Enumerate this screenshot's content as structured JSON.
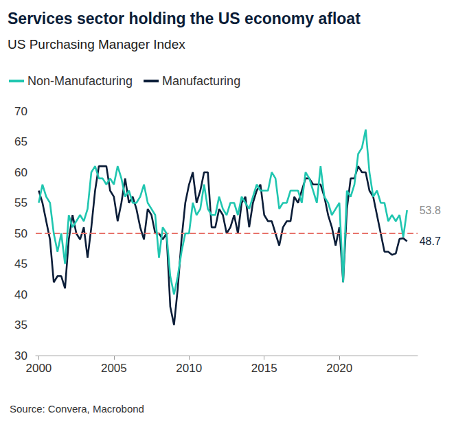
{
  "chart_data": {
    "type": "line",
    "title": "Services sector holding the US economy afloat",
    "subtitle": "US Purchasing Manager Index",
    "source": "Source: Convera, Macrobond",
    "x": [
      2000,
      2000.25,
      2000.5,
      2000.75,
      2001,
      2001.25,
      2001.5,
      2001.75,
      2002,
      2002.25,
      2002.5,
      2002.75,
      2003,
      2003.25,
      2003.5,
      2003.75,
      2004,
      2004.25,
      2004.5,
      2004.75,
      2005,
      2005.25,
      2005.5,
      2005.75,
      2006,
      2006.25,
      2006.5,
      2006.75,
      2007,
      2007.25,
      2007.5,
      2007.75,
      2008,
      2008.25,
      2008.5,
      2008.75,
      2009,
      2009.25,
      2009.5,
      2009.75,
      2010,
      2010.25,
      2010.5,
      2010.75,
      2011,
      2011.25,
      2011.5,
      2011.75,
      2012,
      2012.25,
      2012.5,
      2012.75,
      2013,
      2013.25,
      2013.5,
      2013.75,
      2014,
      2014.25,
      2014.5,
      2014.75,
      2015,
      2015.25,
      2015.5,
      2015.75,
      2016,
      2016.25,
      2016.5,
      2016.75,
      2017,
      2017.25,
      2017.5,
      2017.75,
      2018,
      2018.25,
      2018.5,
      2018.75,
      2019,
      2019.25,
      2019.5,
      2019.75,
      2020,
      2020.25,
      2020.5,
      2020.75,
      2021,
      2021.25,
      2021.5,
      2021.75,
      2022,
      2022.25,
      2022.5,
      2022.75,
      2023,
      2023.25,
      2023.5,
      2023.75,
      2024,
      2024.25,
      2024.5
    ],
    "series": [
      {
        "name": "Non-Manufacturing",
        "color": "#20c6b0",
        "values": [
          55,
          58,
          56,
          55,
          50,
          47,
          50,
          45,
          53,
          51,
          52,
          53,
          52,
          54,
          60,
          61,
          59,
          59,
          58,
          59,
          58,
          61,
          59,
          56,
          57,
          55,
          55,
          56,
          58,
          55,
          54,
          53,
          46,
          51,
          50,
          43,
          40,
          43,
          47,
          50,
          50,
          55,
          53,
          54,
          58,
          54,
          53,
          53,
          56,
          54,
          53,
          55,
          55,
          53,
          56,
          55,
          54,
          56,
          58,
          57,
          57,
          57,
          60,
          59,
          54,
          55,
          55,
          57,
          57,
          57,
          55,
          60,
          59,
          57,
          55,
          61,
          56,
          55,
          53,
          54,
          55,
          42,
          57,
          56,
          58,
          63,
          64,
          67,
          60,
          56,
          57,
          55,
          55,
          52,
          53,
          52,
          53,
          49.4,
          53.8
        ]
      },
      {
        "name": "Manufacturing",
        "color": "#0b1d38",
        "values": [
          57,
          55,
          52,
          49,
          42,
          43,
          43,
          41,
          49,
          53,
          50,
          49,
          51,
          46,
          51,
          57,
          61,
          61,
          61,
          57,
          56,
          52,
          55,
          59,
          55,
          56,
          54,
          51,
          49,
          54,
          53,
          50,
          50,
          49,
          50,
          38,
          35,
          41,
          49,
          55,
          58,
          60,
          55,
          57,
          60,
          60,
          51,
          51,
          54,
          53,
          50,
          51,
          53,
          50,
          55,
          56,
          51,
          55,
          57,
          58,
          53,
          52,
          52,
          50,
          48,
          51,
          52,
          52,
          56,
          55,
          57,
          59,
          59,
          58,
          58,
          58,
          56,
          53,
          51,
          48,
          51,
          42,
          54,
          59,
          59,
          61,
          60,
          60,
          57,
          56,
          53,
          50,
          47,
          47,
          46.5,
          46.7,
          49.1,
          49.2,
          48.7
        ]
      }
    ],
    "xlim": [
      1999.8,
      2025.2
    ],
    "xticks": [
      2000,
      2005,
      2010,
      2015,
      2020
    ],
    "ylim": [
      30,
      70
    ],
    "yticks": [
      30,
      35,
      40,
      45,
      50,
      55,
      60,
      65,
      70
    ],
    "reference_line": {
      "value": 50,
      "color": "#e8736b",
      "line_style": "dashed"
    },
    "grid": false,
    "legend": "top-left"
  }
}
